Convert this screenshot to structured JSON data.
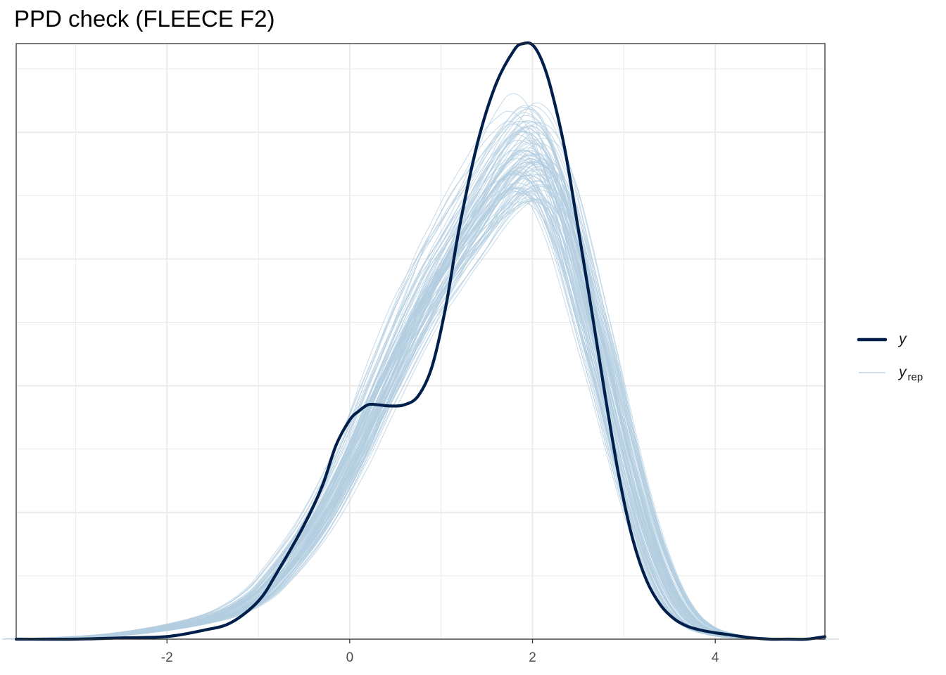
{
  "title": "PPD check (FLEECE F2)",
  "chart_data": {
    "type": "line",
    "title": "PPD check (FLEECE F2)",
    "xlabel": "",
    "ylabel": "",
    "xlim": [
      -3.65,
      5.2
    ],
    "ylim": [
      0,
      0.47
    ],
    "x_ticks": [
      -2,
      0,
      2,
      4
    ],
    "x_tick_labels": [
      "-2",
      "0",
      "2",
      "4"
    ],
    "grid": true,
    "legend_position": "right",
    "legend": [
      {
        "key": "y",
        "label": "y",
        "subscript": "",
        "color": "#011f4b"
      },
      {
        "key": "yrep",
        "label": "y",
        "subscript": "rep",
        "color": "#b3cde0"
      }
    ],
    "series": [
      {
        "name": "y",
        "role": "observed",
        "color": "#011f4b",
        "x": [
          -3.65,
          -3.0,
          -2.5,
          -2.0,
          -1.6,
          -1.3,
          -1.0,
          -0.8,
          -0.5,
          -0.3,
          -0.15,
          0.0,
          0.1,
          0.2,
          0.3,
          0.45,
          0.6,
          0.75,
          0.9,
          1.05,
          1.2,
          1.4,
          1.6,
          1.8,
          1.9,
          2.0,
          2.1,
          2.2,
          2.35,
          2.5,
          2.65,
          2.8,
          2.95,
          3.1,
          3.25,
          3.4,
          3.55,
          3.7,
          3.85,
          4.0,
          4.2,
          4.4,
          4.6,
          4.8,
          5.0,
          5.2
        ],
        "y": [
          0.0,
          0.0,
          0.001,
          0.002,
          0.007,
          0.013,
          0.03,
          0.052,
          0.09,
          0.121,
          0.153,
          0.173,
          0.18,
          0.185,
          0.185,
          0.184,
          0.185,
          0.192,
          0.215,
          0.262,
          0.325,
          0.392,
          0.438,
          0.465,
          0.47,
          0.469,
          0.457,
          0.435,
          0.388,
          0.324,
          0.258,
          0.19,
          0.127,
          0.078,
          0.046,
          0.027,
          0.016,
          0.01,
          0.007,
          0.005,
          0.003,
          0.001,
          0.0,
          0.0,
          0.0,
          0.002
        ]
      }
    ],
    "replicates": {
      "name": "yrep",
      "color": "#b3cde0",
      "count": 100,
      "base_curve": {
        "x": [
          -3.65,
          -3.0,
          -2.5,
          -2.0,
          -1.6,
          -1.3,
          -1.0,
          -0.8,
          -0.5,
          -0.3,
          -0.15,
          0.0,
          0.1,
          0.2,
          0.3,
          0.45,
          0.6,
          0.75,
          0.9,
          1.05,
          1.2,
          1.4,
          1.6,
          1.8,
          1.9,
          2.0,
          2.1,
          2.2,
          2.35,
          2.5,
          2.65,
          2.8,
          2.95,
          3.1,
          3.25,
          3.4,
          3.55,
          3.7,
          3.85,
          4.0,
          4.2,
          4.4,
          4.6,
          4.8,
          5.0,
          5.2
        ],
        "y": [
          0.0,
          0.0015,
          0.004,
          0.009,
          0.015,
          0.022,
          0.035,
          0.05,
          0.078,
          0.101,
          0.121,
          0.143,
          0.158,
          0.175,
          0.192,
          0.216,
          0.24,
          0.262,
          0.283,
          0.3,
          0.318,
          0.34,
          0.363,
          0.38,
          0.385,
          0.384,
          0.378,
          0.365,
          0.335,
          0.295,
          0.252,
          0.21,
          0.165,
          0.122,
          0.085,
          0.055,
          0.032,
          0.017,
          0.009,
          0.005,
          0.002,
          0.001,
          0.0,
          0.0,
          0.0,
          0.0
        ]
      }
    }
  }
}
